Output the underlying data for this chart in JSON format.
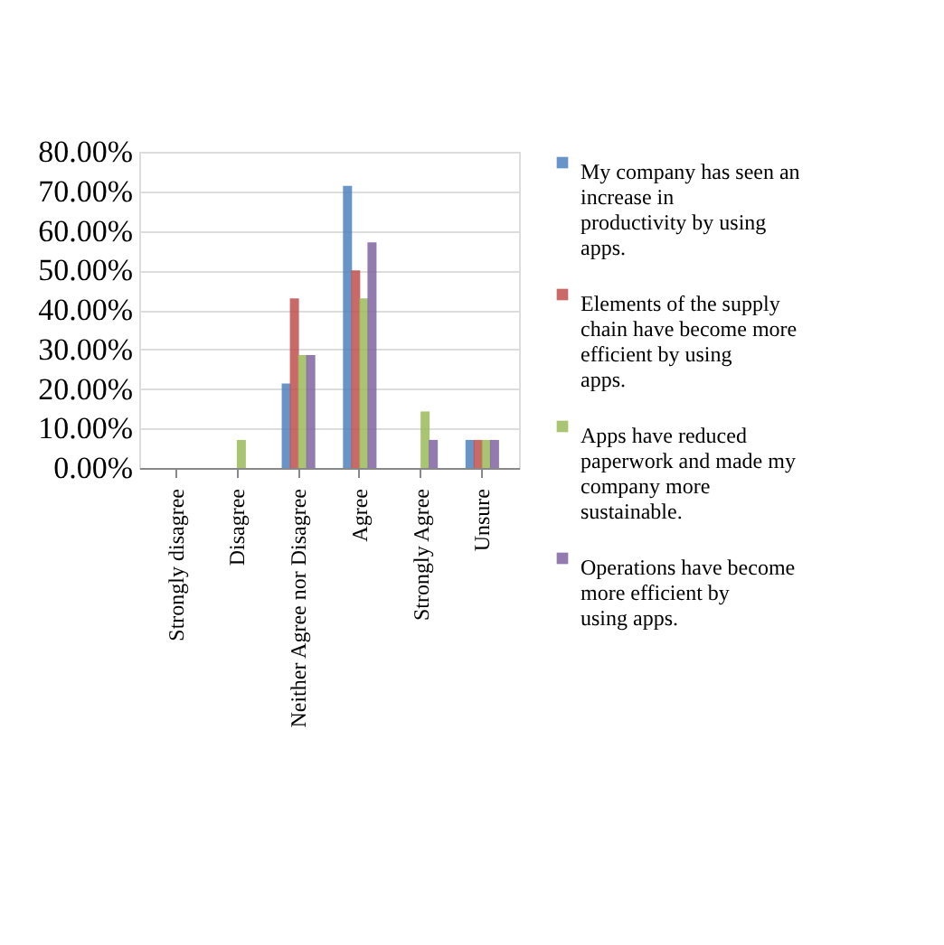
{
  "chart_data": {
    "type": "bar",
    "categories": [
      "Strongly disagree",
      "Disagree",
      "Neither Agree nor Disagree",
      "Agree",
      "Strongly Agree",
      "Unsure"
    ],
    "series": [
      {
        "name": "My company has seen an increase in productivity by using apps.",
        "color": "#4f81bd",
        "values": [
          0,
          0,
          21.4,
          71.4,
          0,
          7.1
        ]
      },
      {
        "name": "Elements of the supply chain have become more efficient by using apps.",
        "color": "#c0504d",
        "values": [
          0,
          0,
          42.9,
          50,
          0,
          7.1
        ]
      },
      {
        "name": "Apps have reduced paperwork and made my company more sustainable.",
        "color": "#9bbb59",
        "values": [
          0,
          7.1,
          28.6,
          42.9,
          14.3,
          7.1
        ]
      },
      {
        "name": "Operations have become more efficient by using apps.",
        "color": "#8064a2",
        "values": [
          0,
          0,
          28.6,
          57.1,
          7.1,
          7.1
        ]
      }
    ],
    "ylim": [
      0,
      80
    ],
    "yticks": [
      {
        "value": 0,
        "label": "0.00%"
      },
      {
        "value": 10,
        "label": "10.00%"
      },
      {
        "value": 20,
        "label": "20.00%"
      },
      {
        "value": 30,
        "label": "30.00%"
      },
      {
        "value": 40,
        "label": "40.00%"
      },
      {
        "value": 50,
        "label": "50.00%"
      },
      {
        "value": 60,
        "label": "60.00%"
      },
      {
        "value": 70,
        "label": "70.00%"
      },
      {
        "value": 80,
        "label": "80.00%"
      }
    ],
    "grid": "y",
    "legend": "right"
  }
}
